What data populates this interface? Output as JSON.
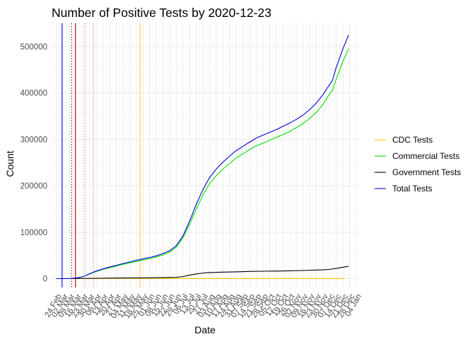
{
  "chart_data": {
    "type": "line",
    "title": "Number of Positive Tests by  2020-12-23",
    "xlabel": "Date",
    "ylabel": "Count",
    "ylim": [
      -19000,
      550000
    ],
    "xlim": [
      "2020-02-19",
      "2021-01-07"
    ],
    "grid": true,
    "legend_position": "right",
    "y_ticks": [
      0,
      100000,
      200000,
      300000,
      400000,
      500000
    ],
    "y_tick_labels": [
      "0",
      "100000",
      "200000",
      "300000",
      "400000",
      "500000"
    ],
    "x_ticks": [
      "2020-02-24",
      "2020-03-02",
      "2020-03-09",
      "2020-03-16",
      "2020-03-23",
      "2020-03-30",
      "2020-04-06",
      "2020-04-13",
      "2020-04-20",
      "2020-04-27",
      "2020-05-04",
      "2020-05-11",
      "2020-05-18",
      "2020-05-25",
      "2020-06-01",
      "2020-06-08",
      "2020-06-15",
      "2020-06-22",
      "2020-06-29",
      "2020-07-06",
      "2020-07-13",
      "2020-07-20",
      "2020-07-27",
      "2020-08-03",
      "2020-08-10",
      "2020-08-17",
      "2020-08-24",
      "2020-08-31",
      "2020-09-07",
      "2020-09-14",
      "2020-09-21",
      "2020-09-28",
      "2020-10-05",
      "2020-10-12",
      "2020-10-19",
      "2020-10-26",
      "2020-11-02",
      "2020-11-09",
      "2020-11-16",
      "2020-11-23",
      "2020-11-30",
      "2020-12-07",
      "2020-12-14",
      "2020-12-21",
      "2020-12-28",
      "2021-01-04"
    ],
    "x_tick_labels": [
      "24 Feb",
      "02 Mar",
      "09 Mar",
      "16 Mar",
      "23 Mar",
      "30 Mar",
      "06 Apr",
      "13 Apr",
      "20 Apr",
      "27 Apr",
      "04 May",
      "11 May",
      "18 May",
      "25 May",
      "01 Jun",
      "08 Jun",
      "15 Jun",
      "22 Jun",
      "29 Jun",
      "06 Jul",
      "13 Jul",
      "20 Jul",
      "27 Jul",
      "03 Aug",
      "10 Aug",
      "17 Aug",
      "24 Aug",
      "31 Aug",
      "07 Sep",
      "14 Sep",
      "21 Sep",
      "28 Sep",
      "05 Oct",
      "12 Oct",
      "19 Oct",
      "26 Oct",
      "02 Nov",
      "09 Nov",
      "16 Nov",
      "23 Nov",
      "30 Nov",
      "07 Dec",
      "14 Dec",
      "21 Dec",
      "28 Dec",
      "04 Jan"
    ],
    "series": [
      {
        "name": "CDC Tests",
        "color": "#FFC000",
        "points": [
          [
            "2020-02-24",
            0
          ],
          [
            "2020-03-13",
            100
          ],
          [
            "2020-04-10",
            250
          ],
          [
            "2020-06-10",
            300
          ],
          [
            "2020-09-01",
            300
          ],
          [
            "2020-12-23",
            300
          ]
        ]
      },
      {
        "name": "Commercial Tests",
        "color": "#00E000",
        "points": [
          [
            "2020-02-24",
            0
          ],
          [
            "2020-03-09",
            0
          ],
          [
            "2020-03-16",
            1500
          ],
          [
            "2020-03-23",
            4000
          ],
          [
            "2020-03-30",
            10000
          ],
          [
            "2020-04-06",
            15500
          ],
          [
            "2020-04-13",
            20000
          ],
          [
            "2020-04-20",
            23500
          ],
          [
            "2020-04-27",
            27000
          ],
          [
            "2020-05-04",
            30500
          ],
          [
            "2020-05-11",
            34000
          ],
          [
            "2020-05-18",
            37000
          ],
          [
            "2020-05-25",
            40000
          ],
          [
            "2020-06-01",
            43000
          ],
          [
            "2020-06-08",
            46500
          ],
          [
            "2020-06-15",
            51000
          ],
          [
            "2020-06-22",
            57000
          ],
          [
            "2020-06-29",
            68000
          ],
          [
            "2020-07-06",
            88000
          ],
          [
            "2020-07-13",
            117000
          ],
          [
            "2020-07-20",
            150000
          ],
          [
            "2020-07-27",
            180000
          ],
          [
            "2020-08-03",
            205000
          ],
          [
            "2020-08-10",
            222000
          ],
          [
            "2020-08-17",
            236000
          ],
          [
            "2020-08-24",
            248000
          ],
          [
            "2020-08-31",
            260000
          ],
          [
            "2020-09-07",
            269000
          ],
          [
            "2020-09-14",
            278000
          ],
          [
            "2020-09-21",
            286000
          ],
          [
            "2020-09-28",
            292000
          ],
          [
            "2020-10-05",
            298000
          ],
          [
            "2020-10-12",
            304000
          ],
          [
            "2020-10-19",
            310000
          ],
          [
            "2020-10-26",
            317000
          ],
          [
            "2020-11-02",
            325000
          ],
          [
            "2020-11-09",
            334000
          ],
          [
            "2020-11-16",
            345000
          ],
          [
            "2020-11-23",
            358000
          ],
          [
            "2020-11-30",
            375000
          ],
          [
            "2020-12-07",
            398000
          ],
          [
            "2020-12-10",
            405000
          ],
          [
            "2020-12-14",
            430000
          ],
          [
            "2020-12-21",
            468000
          ],
          [
            "2020-12-27",
            495000
          ]
        ]
      },
      {
        "name": "Government Tests",
        "color": "#000000",
        "points": [
          [
            "2020-02-24",
            0
          ],
          [
            "2020-03-16",
            200
          ],
          [
            "2020-04-01",
            600
          ],
          [
            "2020-04-20",
            1000
          ],
          [
            "2020-05-11",
            1500
          ],
          [
            "2020-06-08",
            2000
          ],
          [
            "2020-06-29",
            2800
          ],
          [
            "2020-07-06",
            4500
          ],
          [
            "2020-07-13",
            7500
          ],
          [
            "2020-07-20",
            10000
          ],
          [
            "2020-07-27",
            12000
          ],
          [
            "2020-08-03",
            13000
          ],
          [
            "2020-08-17",
            14000
          ],
          [
            "2020-08-31",
            14500
          ],
          [
            "2020-09-14",
            15500
          ],
          [
            "2020-09-28",
            16000
          ],
          [
            "2020-10-19",
            16500
          ],
          [
            "2020-11-09",
            17500
          ],
          [
            "2020-11-30",
            19000
          ],
          [
            "2020-12-07",
            20000
          ],
          [
            "2020-12-14",
            22000
          ],
          [
            "2020-12-21",
            24500
          ],
          [
            "2020-12-27",
            26500
          ]
        ]
      },
      {
        "name": "Total Tests",
        "color": "#0000E0",
        "points": [
          [
            "2020-02-24",
            0
          ],
          [
            "2020-03-09",
            0
          ],
          [
            "2020-03-16",
            1600
          ],
          [
            "2020-03-23",
            4200
          ],
          [
            "2020-03-30",
            10500
          ],
          [
            "2020-04-06",
            16500
          ],
          [
            "2020-04-13",
            21000
          ],
          [
            "2020-04-20",
            25000
          ],
          [
            "2020-04-27",
            28500
          ],
          [
            "2020-05-04",
            32500
          ],
          [
            "2020-05-11",
            36000
          ],
          [
            "2020-05-18",
            39500
          ],
          [
            "2020-05-25",
            42500
          ],
          [
            "2020-06-01",
            45500
          ],
          [
            "2020-06-08",
            49000
          ],
          [
            "2020-06-15",
            54000
          ],
          [
            "2020-06-22",
            60000
          ],
          [
            "2020-06-29",
            71000
          ],
          [
            "2020-07-06",
            92000
          ],
          [
            "2020-07-13",
            124000
          ],
          [
            "2020-07-20",
            160000
          ],
          [
            "2020-07-27",
            192000
          ],
          [
            "2020-08-03",
            218000
          ],
          [
            "2020-08-10",
            236000
          ],
          [
            "2020-08-17",
            251000
          ],
          [
            "2020-08-24",
            264000
          ],
          [
            "2020-08-31",
            276000
          ],
          [
            "2020-09-07",
            285000
          ],
          [
            "2020-09-14",
            294000
          ],
          [
            "2020-09-21",
            303000
          ],
          [
            "2020-09-28",
            309000
          ],
          [
            "2020-10-05",
            315000
          ],
          [
            "2020-10-12",
            321000
          ],
          [
            "2020-10-19",
            328000
          ],
          [
            "2020-10-26",
            335000
          ],
          [
            "2020-11-02",
            343000
          ],
          [
            "2020-11-09",
            352000
          ],
          [
            "2020-11-16",
            364000
          ],
          [
            "2020-11-23",
            378000
          ],
          [
            "2020-11-30",
            396000
          ],
          [
            "2020-12-07",
            418000
          ],
          [
            "2020-12-10",
            427000
          ],
          [
            "2020-12-14",
            455000
          ],
          [
            "2020-12-21",
            495000
          ],
          [
            "2020-12-27",
            525000
          ]
        ]
      }
    ],
    "vlines": [
      {
        "date": "2020-03-01",
        "color": "#0000FF",
        "style": "solid"
      },
      {
        "date": "2020-03-11",
        "color": "#000000",
        "style": "dotted"
      },
      {
        "date": "2020-03-15",
        "color": "#CC0000",
        "style": "solid"
      },
      {
        "date": "2020-03-25",
        "color": "#E06060",
        "style": "dotted"
      },
      {
        "date": "2020-04-03",
        "color": "#F4C0C8",
        "style": "solid"
      },
      {
        "date": "2020-05-22",
        "color": "#FFD24D",
        "style": "solid"
      }
    ]
  }
}
